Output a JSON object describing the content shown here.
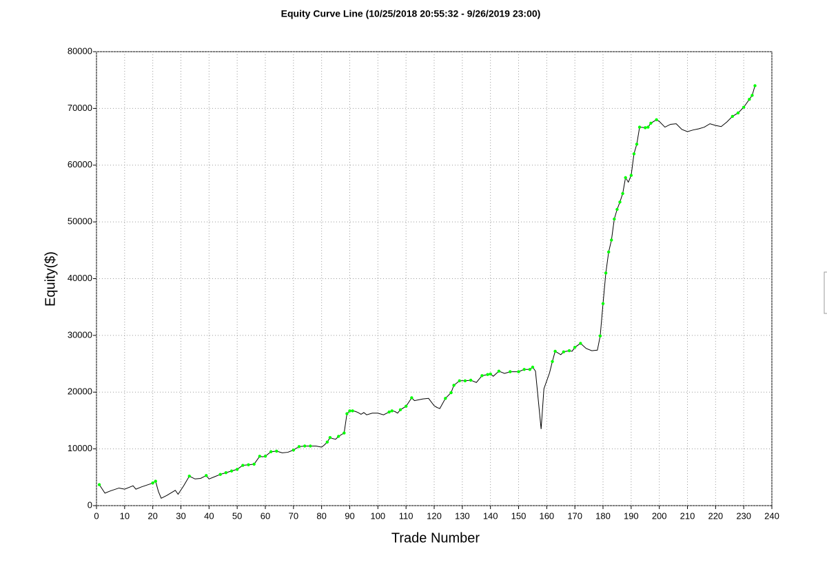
{
  "chart_data": {
    "type": "line",
    "title": "Equity Curve Line (10/25/2018 20:55:32 - 9/26/2019 23:00)",
    "x_label": "Trade Number",
    "y_label": "Equity($)",
    "xlim": [
      0,
      240
    ],
    "ylim": [
      0,
      80000
    ],
    "xticks": [
      0,
      10,
      20,
      30,
      40,
      50,
      60,
      70,
      80,
      90,
      100,
      110,
      120,
      130,
      140,
      150,
      160,
      170,
      180,
      190,
      200,
      210,
      220,
      230,
      240
    ],
    "yticks": [
      0,
      10000,
      20000,
      30000,
      40000,
      50000,
      60000,
      70000,
      80000
    ],
    "grid": true,
    "x": [
      1,
      3,
      5,
      8,
      10,
      13,
      14,
      16,
      19,
      20,
      21,
      22,
      23,
      25,
      28,
      29,
      31,
      33,
      35,
      37,
      39,
      40,
      42,
      44,
      46,
      48,
      50,
      52,
      54,
      56,
      58,
      59,
      60,
      62,
      64,
      66,
      68,
      70,
      72,
      74,
      76,
      78,
      80,
      81,
      82,
      83,
      84,
      85,
      86,
      88,
      89,
      90,
      91,
      92,
      93,
      94,
      95,
      96,
      98,
      100,
      102,
      104,
      105,
      106,
      107,
      108,
      110,
      112,
      113,
      116,
      118,
      120,
      121,
      122,
      124,
      126,
      127,
      129,
      131,
      133,
      135,
      137,
      139,
      140,
      141,
      143,
      145,
      147,
      150,
      152,
      154,
      155,
      156,
      158,
      159,
      161,
      162,
      163,
      165,
      166,
      168,
      169,
      170,
      172,
      174,
      176,
      178,
      179,
      180,
      181,
      182,
      183,
      184,
      185,
      186,
      187,
      188,
      189,
      190,
      191,
      192,
      193,
      195,
      196,
      197,
      199,
      200,
      202,
      204,
      206,
      208,
      210,
      212,
      214,
      216,
      218,
      220,
      222,
      224,
      226,
      228,
      230,
      232,
      233,
      234
    ],
    "series": [
      {
        "mode": "line",
        "color": "#000000",
        "values": [
          3700,
          2200,
          2600,
          3100,
          2900,
          3500,
          2900,
          3300,
          3800,
          4000,
          4300,
          2500,
          1300,
          1800,
          2700,
          2000,
          3500,
          5200,
          4700,
          4800,
          5300,
          4700,
          5100,
          5500,
          5800,
          6100,
          6400,
          7100,
          7200,
          7300,
          8700,
          8600,
          8700,
          9500,
          9600,
          9300,
          9400,
          9800,
          10400,
          10500,
          10500,
          10500,
          10300,
          10700,
          11200,
          12000,
          11800,
          11700,
          12200,
          12800,
          16200,
          16700,
          16700,
          16600,
          16400,
          16100,
          16400,
          16000,
          16300,
          16300,
          16000,
          16500,
          16700,
          16600,
          16300,
          16900,
          17500,
          19000,
          18500,
          18800,
          18900,
          17600,
          17300,
          17100,
          18900,
          19900,
          21200,
          22000,
          22000,
          22100,
          21700,
          22900,
          23100,
          23200,
          22800,
          23700,
          23300,
          23600,
          23600,
          24000,
          24000,
          24400,
          23700,
          13500,
          20600,
          23400,
          25400,
          27200,
          26600,
          27100,
          27300,
          27200,
          27900,
          28600,
          27700,
          27300,
          27400,
          29900,
          35600,
          41000,
          44700,
          46800,
          50500,
          52200,
          53500,
          55000,
          57800,
          57000,
          58200,
          62000,
          63700,
          66700,
          66600,
          66700,
          67400,
          68000,
          67700,
          66700,
          67200,
          67300,
          66300,
          65900,
          66200,
          66400,
          66700,
          67300,
          67000,
          66800,
          67600,
          68600,
          69200,
          70200,
          71600,
          72300,
          74000
        ]
      },
      {
        "mode": "markers",
        "color": "#00ff00",
        "values": [
          3700,
          null,
          null,
          null,
          null,
          null,
          null,
          null,
          null,
          4000,
          4300,
          null,
          null,
          null,
          null,
          null,
          null,
          5200,
          null,
          null,
          5300,
          null,
          null,
          5500,
          5800,
          6100,
          6400,
          7100,
          7200,
          7300,
          8700,
          null,
          8700,
          9500,
          9600,
          null,
          null,
          9800,
          10400,
          10500,
          10500,
          null,
          null,
          null,
          11200,
          12000,
          null,
          null,
          12200,
          12800,
          16200,
          16700,
          16700,
          null,
          null,
          null,
          null,
          null,
          null,
          null,
          null,
          16500,
          16700,
          null,
          null,
          16900,
          17500,
          19000,
          null,
          null,
          null,
          null,
          null,
          null,
          18900,
          19900,
          21200,
          22000,
          22000,
          22100,
          null,
          22900,
          23100,
          23200,
          null,
          23700,
          null,
          23600,
          23600,
          24000,
          24000,
          24400,
          null,
          null,
          null,
          null,
          25400,
          27200,
          null,
          27100,
          27300,
          null,
          27900,
          28600,
          null,
          null,
          null,
          29900,
          35600,
          41000,
          44700,
          46800,
          50500,
          52200,
          53500,
          55000,
          57800,
          null,
          58200,
          62000,
          63700,
          66700,
          66600,
          66700,
          67400,
          68000,
          null,
          null,
          null,
          null,
          null,
          null,
          null,
          null,
          null,
          null,
          null,
          null,
          null,
          68600,
          69200,
          70200,
          71600,
          72300,
          74000
        ]
      }
    ]
  }
}
